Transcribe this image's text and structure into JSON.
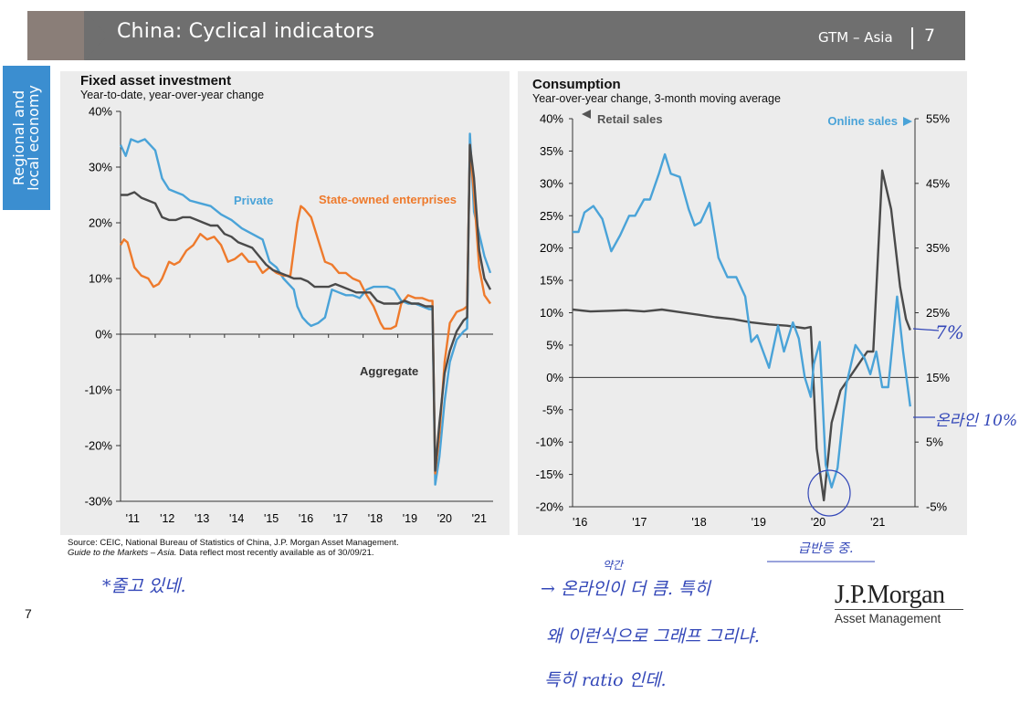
{
  "header": {
    "title": "China: Cyclical indicators",
    "section": "GTM – Asia",
    "page": "7"
  },
  "sidebar": {
    "label": "Regional and\nlocal economy"
  },
  "footer": {
    "page_number": "7",
    "source_line1": "Source: CEIC, National Bureau of Statistics of China, J.P. Morgan Asset Management.",
    "source_line2_italic": "Guide to the Markets – Asia.",
    "source_line2_rest": " Data reflect most recently available as of 30/09/21.",
    "logo_main": "J.P.Morgan",
    "logo_sub": "Asset Management"
  },
  "handwritten": {
    "note_left": "*줄고 있네.",
    "note_circle": "급반등 중.",
    "note_seven": "7%",
    "note_online": "온라인 10%",
    "note_line1_top": "약간",
    "note_line1": "→ 온라인이 더 큼. 특히",
    "note_line2": "왜 이런식으로 그래프 그리냐.",
    "note_line3": "특히 ratio 인데."
  },
  "colors": {
    "private": "#4aa3d8",
    "soe": "#ee7a2c",
    "aggregate": "#4a4a4a",
    "retail": "#4a4a4a",
    "online": "#4aa3d8",
    "panel_bg": "#ececec",
    "header": "#6f6f6f",
    "sidebar": "#3b8ed0",
    "ink": "#3347b8"
  },
  "chart_data": [
    {
      "type": "line",
      "title": "Fixed asset investment",
      "subtitle": "Year-to-date, year-over-year change",
      "xlim": [
        2011,
        2021.75
      ],
      "ylim": [
        -30,
        40
      ],
      "yticks": [
        -30,
        -20,
        -10,
        0,
        10,
        20,
        30,
        40
      ],
      "ytick_labels": [
        "-30%",
        "-20%",
        "-10%",
        "0%",
        "10%",
        "20%",
        "30%",
        "40%"
      ],
      "xtick_labels": [
        "'11",
        "'12",
        "'13",
        "'14",
        "'15",
        "'16",
        "'17",
        "'18",
        "'19",
        "'20",
        "'21"
      ],
      "series": [
        {
          "name": "Private",
          "color": "#4aa3d8",
          "x": [
            2011.0,
            2011.15,
            2011.3,
            2011.5,
            2011.7,
            2011.85,
            2012.0,
            2012.2,
            2012.4,
            2012.6,
            2012.8,
            2013.0,
            2013.3,
            2013.6,
            2013.9,
            2014.2,
            2014.5,
            2014.8,
            2015.1,
            2015.3,
            2015.5,
            2015.7,
            2016.0,
            2016.1,
            2016.25,
            2016.4,
            2016.5,
            2016.7,
            2016.9,
            2017.1,
            2017.3,
            2017.5,
            2017.7,
            2017.9,
            2018.1,
            2018.3,
            2018.5,
            2018.7,
            2018.9,
            2019.1,
            2019.3,
            2019.5,
            2019.7,
            2019.9,
            2020.0,
            2020.08,
            2020.2,
            2020.35,
            2020.5,
            2020.7,
            2020.9,
            2021.0,
            2021.08,
            2021.2,
            2021.35,
            2021.5,
            2021.67
          ],
          "y": [
            34,
            32,
            35,
            34.5,
            35,
            34,
            33,
            28,
            26,
            25.5,
            25,
            24,
            23.5,
            23,
            21.5,
            20.5,
            19,
            18,
            17,
            13,
            12,
            10,
            8,
            5,
            3,
            2,
            1.5,
            2,
            3,
            8,
            7.5,
            7,
            7,
            6.5,
            8,
            8.5,
            8.5,
            8.5,
            8,
            6,
            5.5,
            5.5,
            5,
            4.5,
            4.5,
            -27,
            -22,
            -12,
            -5,
            -1,
            0.5,
            1,
            36,
            22,
            18,
            14,
            11
          ]
        },
        {
          "name": "State-owned enterprises",
          "color": "#ee7a2c",
          "x": [
            2011.0,
            2011.1,
            2011.2,
            2011.4,
            2011.6,
            2011.8,
            2011.95,
            2012.1,
            2012.2,
            2012.4,
            2012.55,
            2012.7,
            2012.9,
            2013.1,
            2013.3,
            2013.5,
            2013.7,
            2013.9,
            2014.1,
            2014.3,
            2014.5,
            2014.7,
            2014.9,
            2015.1,
            2015.3,
            2015.5,
            2015.7,
            2015.9,
            2016.1,
            2016.2,
            2016.3,
            2016.5,
            2016.7,
            2016.9,
            2017.1,
            2017.3,
            2017.5,
            2017.7,
            2017.9,
            2018.1,
            2018.3,
            2018.5,
            2018.6,
            2018.8,
            2018.95,
            2019.1,
            2019.3,
            2019.5,
            2019.7,
            2019.9,
            2020.0,
            2020.08,
            2020.2,
            2020.35,
            2020.5,
            2020.7,
            2020.9,
            2021.0,
            2021.08,
            2021.2,
            2021.35,
            2021.5,
            2021.67
          ],
          "y": [
            16,
            17,
            16.5,
            12,
            10.5,
            10,
            8.5,
            9,
            10,
            13,
            12.5,
            13,
            15,
            16,
            18,
            17,
            17.5,
            16,
            13,
            13.5,
            14.5,
            13,
            13,
            11,
            12,
            11,
            10.5,
            10.5,
            20,
            23,
            22.5,
            21,
            17,
            13,
            12.5,
            11,
            11,
            10,
            9.5,
            7,
            5,
            2,
            1,
            1,
            1.5,
            5.5,
            7,
            6.5,
            6.5,
            6,
            6,
            -25,
            -18,
            -5,
            2,
            4,
            4.5,
            5,
            34,
            25,
            12,
            7,
            5.5
          ]
        },
        {
          "name": "Aggregate",
          "color": "#4a4a4a",
          "x": [
            2011.0,
            2011.2,
            2011.4,
            2011.6,
            2011.8,
            2012.0,
            2012.2,
            2012.4,
            2012.6,
            2012.8,
            2013.0,
            2013.2,
            2013.4,
            2013.6,
            2013.8,
            2014.0,
            2014.2,
            2014.4,
            2014.6,
            2014.8,
            2015.0,
            2015.2,
            2015.4,
            2015.6,
            2015.8,
            2016.0,
            2016.2,
            2016.4,
            2016.6,
            2016.8,
            2017.0,
            2017.2,
            2017.4,
            2017.6,
            2017.8,
            2018.0,
            2018.2,
            2018.4,
            2018.6,
            2018.8,
            2019.0,
            2019.2,
            2019.4,
            2019.6,
            2019.8,
            2020.0,
            2020.08,
            2020.2,
            2020.35,
            2020.5,
            2020.7,
            2020.9,
            2021.0,
            2021.08,
            2021.2,
            2021.35,
            2021.5,
            2021.67
          ],
          "y": [
            25,
            25,
            25.5,
            24.5,
            24,
            23.5,
            21,
            20.5,
            20.5,
            21,
            21,
            20.5,
            20,
            19.5,
            19.5,
            18,
            17.5,
            16.5,
            16,
            15.5,
            14,
            12.5,
            11.5,
            11,
            10.5,
            10,
            10,
            9.5,
            8.5,
            8.5,
            8.5,
            9,
            8.5,
            8,
            7.5,
            7.5,
            7.5,
            6,
            5.5,
            5.5,
            5.5,
            6,
            5.5,
            5.5,
            5,
            5,
            -24.5,
            -16,
            -7,
            -3,
            0.5,
            2.5,
            3,
            34,
            28,
            15,
            10,
            8
          ]
        }
      ],
      "labels": {
        "private": "Private",
        "soe": "State-owned enterprises",
        "aggregate": "Aggregate"
      }
    },
    {
      "type": "line",
      "title": "Consumption",
      "subtitle": "Year-over-year change, 3-month moving average",
      "xlim": [
        2016,
        2021.75
      ],
      "ylim_left": [
        -20,
        40
      ],
      "ylim_right": [
        -5,
        55
      ],
      "yticks_left_labels": [
        "-20%",
        "-15%",
        "-10%",
        "-5%",
        "0%",
        "5%",
        "10%",
        "15%",
        "20%",
        "25%",
        "30%",
        "35%",
        "40%"
      ],
      "yticks_right_labels": [
        "-5%",
        "5%",
        "15%",
        "25%",
        "35%",
        "45%",
        "55%"
      ],
      "xtick_labels": [
        "'16",
        "'17",
        "'18",
        "'19",
        "'20",
        "'21"
      ],
      "legend_left": "Retail sales",
      "legend_right": "Online sales",
      "series": [
        {
          "name": "Retail sales",
          "axis": "left",
          "color": "#4a4a4a",
          "x": [
            2016.0,
            2016.3,
            2016.6,
            2016.9,
            2017.2,
            2017.5,
            2017.8,
            2018.1,
            2018.4,
            2018.7,
            2019.0,
            2019.3,
            2019.6,
            2019.9,
            2020.0,
            2020.1,
            2020.22,
            2020.35,
            2020.5,
            2020.65,
            2020.8,
            2020.95,
            2021.05,
            2021.2,
            2021.35,
            2021.5,
            2021.6,
            2021.67
          ],
          "y": [
            10.5,
            10.2,
            10.3,
            10.4,
            10.2,
            10.5,
            10.1,
            9.7,
            9.3,
            9,
            8.5,
            8.2,
            8,
            7.6,
            7.8,
            -11,
            -19,
            -7,
            -2,
            0,
            2,
            4,
            4,
            32,
            26,
            14,
            9,
            7.3
          ]
        },
        {
          "name": "Online sales",
          "axis": "right",
          "color": "#4aa3d8",
          "x": [
            2016.0,
            2016.1,
            2016.2,
            2016.35,
            2016.5,
            2016.65,
            2016.8,
            2016.95,
            2017.05,
            2017.2,
            2017.3,
            2017.45,
            2017.55,
            2017.65,
            2017.8,
            2017.95,
            2018.05,
            2018.15,
            2018.3,
            2018.45,
            2018.6,
            2018.75,
            2018.9,
            2019.0,
            2019.1,
            2019.2,
            2019.3,
            2019.45,
            2019.55,
            2019.7,
            2019.8,
            2019.9,
            2020.0,
            2020.05,
            2020.15,
            2020.25,
            2020.35,
            2020.45,
            2020.6,
            2020.75,
            2020.9,
            2021.0,
            2021.1,
            2021.2,
            2021.3,
            2021.45,
            2021.55,
            2021.67
          ],
          "y": [
            37.5,
            37.5,
            40.5,
            41.5,
            39.5,
            34.5,
            37,
            40,
            40,
            42.5,
            42.5,
            46.5,
            49.5,
            46.5,
            46,
            41,
            38.5,
            39,
            42,
            33.5,
            30.5,
            30.5,
            27.5,
            20.5,
            21.5,
            19,
            16.5,
            23,
            19,
            23.5,
            21,
            15,
            12,
            17,
            20.5,
            1.5,
            -2,
            1,
            14,
            20,
            18,
            15.5,
            19,
            13.5,
            13.5,
            27.5,
            19,
            10.5
          ]
        }
      ]
    }
  ]
}
